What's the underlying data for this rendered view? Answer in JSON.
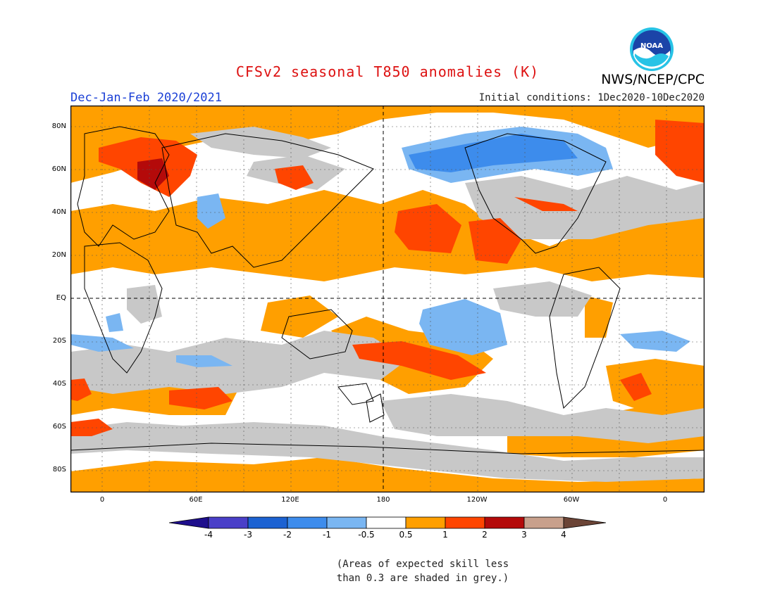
{
  "title": "CFSv2 seasonal T850 anomalies (K)",
  "agency": "NWS/NCEP/CPC",
  "logo_text": "NOAA",
  "season": "Dec-Jan-Feb 2020/2021",
  "initial_conditions": "Initial conditions: 1Dec2020-10Dec2020",
  "lat_labels": [
    "80N",
    "60N",
    "40N",
    "20N",
    "EQ",
    "20S",
    "40S",
    "60S",
    "80S"
  ],
  "lon_labels": [
    "0",
    "60E",
    "120E",
    "180",
    "120W",
    "60W",
    "0"
  ],
  "colorbar": {
    "ticks": [
      "-4",
      "-3",
      "-2",
      "-1",
      "-0.5",
      "0.5",
      "1",
      "2",
      "3",
      "4"
    ],
    "colors": [
      "#1e0e8c",
      "#4a3fc8",
      "#1c62d2",
      "#3d8cec",
      "#7ab6f2",
      "#ffffff",
      "#ff9f00",
      "#ff4500",
      "#b40a0a",
      "#c8a08c",
      "#6b4436"
    ]
  },
  "note_line1": "(Areas of expected skill less",
  "note_line2": "than 0.3 are shaded in grey.)",
  "colors": {
    "positive_weak": "#ff9f00",
    "positive_mid": "#ff4500",
    "positive_strong": "#b40a0a",
    "negative_weak": "#7ab6f2",
    "negative_mid": "#3d8cec",
    "negative_strong": "#1c62d2",
    "low_skill": "#c8c8c8",
    "title": "#dd1111",
    "season": "#1a3fd6"
  }
}
